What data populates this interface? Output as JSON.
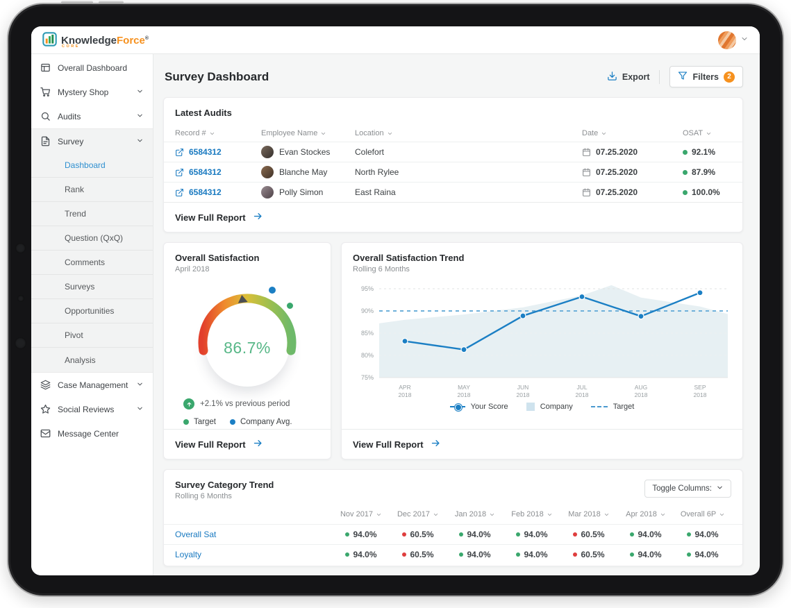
{
  "brand": {
    "name_primary": "Knowledge",
    "name_secondary": "Force",
    "trademark": "®",
    "subtext": "CORE"
  },
  "header": {
    "title": "Survey Dashboard",
    "export_label": "Export",
    "filters_label": "Filters",
    "filters_count": "2"
  },
  "sidebar": {
    "items": [
      {
        "label": "Overall Dashboard",
        "icon": "dashboard",
        "expandable": false
      },
      {
        "label": "Mystery Shop",
        "icon": "cart",
        "expandable": true
      },
      {
        "label": "Audits",
        "icon": "search",
        "expandable": true
      },
      {
        "label": "Survey",
        "icon": "file",
        "expandable": true,
        "expanded": true,
        "children": [
          "Dashboard",
          "Rank",
          "Trend",
          "Question (QxQ)",
          "Comments",
          "Surveys",
          "Opportunities",
          "Pivot",
          "Analysis"
        ],
        "active_child": "Dashboard"
      },
      {
        "label": "Case Management",
        "icon": "layers",
        "expandable": true
      },
      {
        "label": "Social Reviews",
        "icon": "star",
        "expandable": true
      },
      {
        "label": "Message Center",
        "icon": "mail",
        "expandable": false
      }
    ]
  },
  "latest_audits": {
    "title": "Latest Audits",
    "columns": [
      "Record #",
      "Employee Name",
      "Location",
      "Date",
      "OSAT"
    ],
    "rows": [
      {
        "record": "6584312",
        "employee": "Evan Stockes",
        "location": "Colefort",
        "date": "07.25.2020",
        "osat": "92.1%",
        "osat_status": "good"
      },
      {
        "record": "6584312",
        "employee": "Blanche May",
        "location": "North Rylee",
        "date": "07.25.2020",
        "osat": "87.9%",
        "osat_status": "good"
      },
      {
        "record": "6584312",
        "employee": "Polly Simon",
        "location": "East Raina",
        "date": "07.25.2020",
        "osat": "100.0%",
        "osat_status": "good"
      }
    ],
    "footer_label": "View Full Report"
  },
  "gauge_card": {
    "title": "Overall Satisfaction",
    "subtitle": "April 2018",
    "value_label": "86.7%",
    "change_label": "+2.1% vs previous period",
    "legend": [
      {
        "label": "Target"
      },
      {
        "label": "Company Avg."
      }
    ],
    "footer_label": "View Full Report"
  },
  "trend_card": {
    "title": "Overall Satisfaction Trend",
    "subtitle": "Rolling 6 Months",
    "legend": [
      {
        "label": "Your Score"
      },
      {
        "label": "Company"
      },
      {
        "label": "Target"
      }
    ],
    "footer_label": "View Full Report"
  },
  "chart_data": [
    {
      "type": "gauge",
      "title": "Overall Satisfaction",
      "period": "April 2018",
      "value": 86.7,
      "unit": "%",
      "range": [
        0,
        100
      ],
      "delta_vs_previous_period": "+2.1%",
      "markers": [
        {
          "name": "Company Avg.",
          "color": "#1b7fc4"
        },
        {
          "name": "Target",
          "color": "#3aa76d"
        }
      ],
      "arc_gradient": [
        "#e2402c",
        "#ef8c2d",
        "#d9bf39",
        "#9dbf4f",
        "#6db96a"
      ],
      "value_color": "#57b787"
    },
    {
      "type": "line",
      "title": "Overall Satisfaction Trend",
      "subtitle": "Rolling 6 Months",
      "x_months": [
        "APR",
        "MAY",
        "JUN",
        "JUL",
        "AUG",
        "SEP"
      ],
      "x_year": "2018",
      "ylim": [
        75,
        97
      ],
      "yticks": [
        95,
        90,
        85,
        80,
        75
      ],
      "grid": true,
      "legend_position": "bottom",
      "series": [
        {
          "name": "Your Score",
          "type": "line",
          "color": "#1b7fc4",
          "values": [
            83.2,
            81.3,
            88.9,
            93.2,
            88.8,
            94.1
          ]
        },
        {
          "name": "Company",
          "type": "area",
          "color": "#e7f0f3",
          "values": [
            88.0,
            89.2,
            90.8,
            93.5,
            93.0,
            91.0
          ],
          "left_edge": 87.2,
          "right_edge": 89.3,
          "peak_between_jul_aug": 95.8
        },
        {
          "name": "Target",
          "type": "dashed_line",
          "color": "#6fb0da",
          "value": 90
        }
      ]
    },
    {
      "type": "table",
      "title": "Survey Category Trend",
      "subtitle": "Rolling 6 Months",
      "columns": [
        "Nov 2017",
        "Dec 2017",
        "Jan 2018",
        "Feb 2018",
        "Mar 2018",
        "Apr 2018",
        "Overall 6P"
      ],
      "rows": [
        {
          "label": "Overall Sat",
          "values": [
            "94.0%",
            "60.5%",
            "94.0%",
            "94.0%",
            "60.5%",
            "94.0%",
            "94.0%"
          ],
          "statuses": [
            "good",
            "bad",
            "good",
            "good",
            "bad",
            "good",
            "good"
          ]
        },
        {
          "label": "Loyalty",
          "values": [
            "94.0%",
            "60.5%",
            "94.0%",
            "94.0%",
            "60.5%",
            "94.0%",
            "94.0%"
          ],
          "statuses": [
            "good",
            "bad",
            "good",
            "good",
            "bad",
            "good",
            "good"
          ]
        }
      ]
    }
  ],
  "category_card": {
    "title": "Survey Category Trend",
    "subtitle": "Rolling 6 Months",
    "toggle_label": "Toggle Columns:"
  },
  "colors": {
    "accent_blue": "#1b7fc4",
    "link_blue": "#1879c0",
    "active_nav": "#2e8fd0",
    "good_green": "#3aa76d",
    "bad_red": "#df3e3e",
    "brand_orange": "#f6911e",
    "target_dash": "#6fb0da",
    "company_area": "#e7f0f3",
    "gauge_value_green": "#57b787"
  }
}
